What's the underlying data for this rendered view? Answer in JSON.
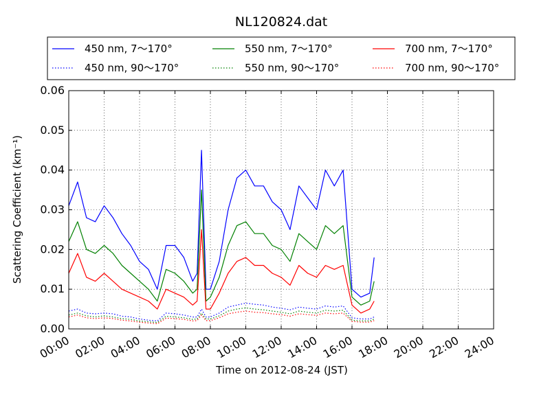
{
  "chart_data": {
    "type": "line",
    "title": "NL120824.dat",
    "xlabel": "Time on 2012-08-24 (JST)",
    "ylabel": "Scattering Coefficient (km⁻¹)",
    "xlim": [
      "00:00",
      "24:00"
    ],
    "ylim": [
      0,
      0.06
    ],
    "grid": true,
    "legend_position": "top (above plot, 3 columns)",
    "x_ticks": [
      "00:00",
      "02:00",
      "04:00",
      "06:00",
      "08:00",
      "10:00",
      "12:00",
      "14:00",
      "16:00",
      "18:00",
      "20:00",
      "22:00",
      "24:00"
    ],
    "y_ticks": [
      "0.00",
      "0.01",
      "0.02",
      "0.03",
      "0.04",
      "0.05",
      "0.06"
    ],
    "x": [
      "00:00",
      "00:30",
      "01:00",
      "01:30",
      "02:00",
      "02:30",
      "03:00",
      "03:30",
      "04:00",
      "04:30",
      "05:00",
      "05:30",
      "06:00",
      "06:30",
      "07:00",
      "07:15",
      "07:30",
      "07:45",
      "08:00",
      "08:30",
      "09:00",
      "09:30",
      "10:00",
      "10:30",
      "11:00",
      "11:30",
      "12:00",
      "12:30",
      "13:00",
      "13:30",
      "14:00",
      "14:30",
      "15:00",
      "15:30",
      "16:00",
      "16:30",
      "17:00",
      "17:15"
    ],
    "series": [
      {
        "name": "450 nm, 7～170°",
        "color": "#0000ff",
        "style": "solid",
        "values": [
          0.031,
          0.037,
          0.028,
          0.027,
          0.031,
          0.028,
          0.024,
          0.021,
          0.017,
          0.015,
          0.01,
          0.021,
          0.021,
          0.018,
          0.012,
          0.014,
          0.045,
          0.01,
          0.01,
          0.017,
          0.03,
          0.038,
          0.04,
          0.036,
          0.036,
          0.032,
          0.03,
          0.025,
          0.036,
          0.033,
          0.03,
          0.04,
          0.036,
          0.04,
          0.01,
          0.008,
          0.009,
          0.018
        ]
      },
      {
        "name": "450 nm, 90～170°",
        "color": "#0000ff",
        "style": "dotted",
        "values": [
          0.0045,
          0.005,
          0.004,
          0.0038,
          0.004,
          0.0038,
          0.0032,
          0.003,
          0.0025,
          0.0022,
          0.002,
          0.004,
          0.0038,
          0.0035,
          0.003,
          0.003,
          0.005,
          0.003,
          0.003,
          0.004,
          0.0055,
          0.006,
          0.0065,
          0.0062,
          0.006,
          0.0055,
          0.0052,
          0.0048,
          0.0055,
          0.0052,
          0.005,
          0.0058,
          0.0055,
          0.0058,
          0.0028,
          0.0025,
          0.0025,
          0.003
        ]
      },
      {
        "name": "550 nm, 7～170°",
        "color": "#008000",
        "style": "solid",
        "values": [
          0.022,
          0.027,
          0.02,
          0.019,
          0.021,
          0.019,
          0.016,
          0.014,
          0.012,
          0.01,
          0.007,
          0.015,
          0.014,
          0.012,
          0.009,
          0.01,
          0.035,
          0.007,
          0.008,
          0.013,
          0.021,
          0.026,
          0.027,
          0.024,
          0.024,
          0.021,
          0.02,
          0.017,
          0.024,
          0.022,
          0.02,
          0.026,
          0.024,
          0.026,
          0.008,
          0.006,
          0.007,
          0.012
        ]
      },
      {
        "name": "550 nm, 90～170°",
        "color": "#008000",
        "style": "dotted",
        "values": [
          0.0035,
          0.004,
          0.0033,
          0.003,
          0.0033,
          0.003,
          0.0026,
          0.0024,
          0.002,
          0.0018,
          0.0016,
          0.0032,
          0.003,
          0.0028,
          0.0024,
          0.0025,
          0.004,
          0.0025,
          0.0025,
          0.0033,
          0.0045,
          0.005,
          0.0053,
          0.005,
          0.0048,
          0.0045,
          0.0042,
          0.0038,
          0.0045,
          0.0042,
          0.004,
          0.0047,
          0.0045,
          0.0047,
          0.0022,
          0.002,
          0.002,
          0.0025
        ]
      },
      {
        "name": "700 nm, 7～170°",
        "color": "#ff0000",
        "style": "solid",
        "values": [
          0.014,
          0.019,
          0.013,
          0.012,
          0.014,
          0.012,
          0.01,
          0.009,
          0.008,
          0.007,
          0.005,
          0.01,
          0.009,
          0.008,
          0.006,
          0.007,
          0.025,
          0.005,
          0.005,
          0.009,
          0.014,
          0.017,
          0.018,
          0.016,
          0.016,
          0.014,
          0.013,
          0.011,
          0.016,
          0.014,
          0.013,
          0.016,
          0.015,
          0.016,
          0.006,
          0.004,
          0.005,
          0.007
        ]
      },
      {
        "name": "700 nm, 90～170°",
        "color": "#ff0000",
        "style": "dotted",
        "values": [
          0.003,
          0.0035,
          0.0028,
          0.0026,
          0.0028,
          0.0026,
          0.0022,
          0.002,
          0.0017,
          0.0015,
          0.0013,
          0.0027,
          0.0026,
          0.0024,
          0.002,
          0.0021,
          0.0035,
          0.0021,
          0.0021,
          0.0028,
          0.0038,
          0.0042,
          0.0045,
          0.0042,
          0.0041,
          0.0038,
          0.0036,
          0.0032,
          0.0038,
          0.0036,
          0.0034,
          0.004,
          0.0038,
          0.004,
          0.0019,
          0.0017,
          0.0017,
          0.0021
        ]
      }
    ]
  }
}
